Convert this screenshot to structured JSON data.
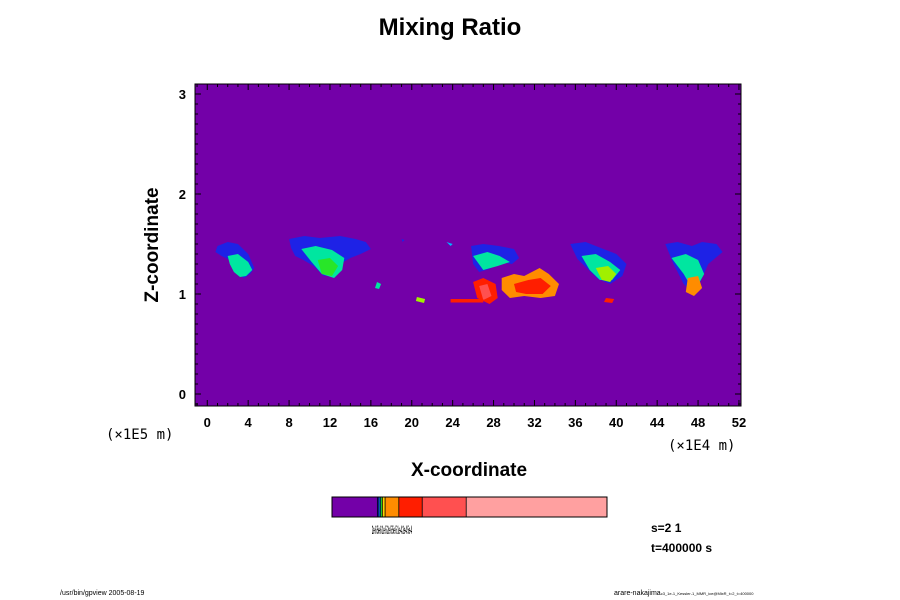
{
  "chart_data": {
    "type": "heatmap",
    "title": "Mixing Ratio",
    "xlabel": "X-coordinate",
    "ylabel": "Z-coordinate",
    "x_scale_label": "(×1E4 m)",
    "y_scale_label": "(×1E5 m)",
    "xlim": [
      -1.2,
      52.2
    ],
    "ylim": [
      -0.12,
      3.1
    ],
    "x_ticks": [
      "0",
      "4",
      "8",
      "12",
      "16",
      "20",
      "24",
      "28",
      "32",
      "36",
      "40",
      "44",
      "48",
      "52"
    ],
    "y_ticks": [
      "0",
      "1",
      "2",
      "3"
    ],
    "x_tick_values": [
      0,
      4,
      8,
      12,
      16,
      20,
      24,
      28,
      32,
      36,
      40,
      44,
      48,
      52
    ],
    "y_tick_values": [
      0,
      1,
      2,
      3
    ],
    "colorbar_labels": "2e-6 5e-6 1e-5 2e-5 5e-5 1e-4 2e-4 5e-4",
    "colors": {
      "background": "#7300a8",
      "levels": [
        "#7300a8",
        "#1e22e6",
        "#00b4ff",
        "#00e6a0",
        "#28e628",
        "#a0f000",
        "#ffd200",
        "#ff8c00",
        "#ff1e00",
        "#ff5050",
        "#ffa0a0"
      ]
    },
    "clouds": [
      {
        "x": [
          1.0,
          2.0,
          3.0,
          4.0,
          4.6,
          4.2,
          3.6,
          3.0,
          2.6,
          2.0,
          1.4,
          0.8
        ],
        "z": [
          1.48,
          1.52,
          1.5,
          1.4,
          1.26,
          1.2,
          1.16,
          1.2,
          1.3,
          1.35,
          1.38,
          1.42
        ],
        "level": 1
      },
      {
        "x": [
          2.0,
          3.0,
          4.0,
          4.4,
          3.8,
          3.2,
          2.6,
          2.2
        ],
        "z": [
          1.38,
          1.4,
          1.32,
          1.24,
          1.18,
          1.17,
          1.22,
          1.3
        ],
        "level": 3
      },
      {
        "x": [
          8.0,
          9.5,
          11.0,
          13.0,
          14.5,
          15.5,
          16.0,
          15.0,
          14.0,
          13.0,
          12.4,
          11.4,
          10.4,
          9.4,
          8.6,
          8.2
        ],
        "z": [
          1.55,
          1.58,
          1.56,
          1.58,
          1.55,
          1.52,
          1.45,
          1.4,
          1.36,
          1.3,
          1.2,
          1.18,
          1.28,
          1.34,
          1.38,
          1.46
        ],
        "level": 1
      },
      {
        "x": [
          9.2,
          10.6,
          12.2,
          13.4,
          13.2,
          12.4,
          11.2,
          10.2
        ],
        "z": [
          1.45,
          1.48,
          1.44,
          1.36,
          1.24,
          1.16,
          1.2,
          1.32
        ],
        "level": 3
      },
      {
        "x": [
          10.8,
          12.0,
          12.8,
          12.2,
          11.2
        ],
        "z": [
          1.34,
          1.36,
          1.28,
          1.18,
          1.2
        ],
        "level": 4
      },
      {
        "x": [
          25.8,
          27.0,
          28.5,
          30.0,
          30.5,
          29.8,
          28.6,
          27.6,
          26.6,
          26.0
        ],
        "z": [
          1.48,
          1.5,
          1.48,
          1.45,
          1.36,
          1.3,
          1.32,
          1.25,
          1.22,
          1.3
        ],
        "level": 1
      },
      {
        "x": [
          26.0,
          27.4,
          28.6,
          29.6,
          28.4,
          27.0
        ],
        "z": [
          1.38,
          1.42,
          1.38,
          1.32,
          1.28,
          1.24
        ],
        "level": 3
      },
      {
        "x": [
          35.5,
          37.0,
          38.5,
          40.0,
          41.0,
          40.6,
          39.4,
          38.2,
          37.2,
          36.2
        ],
        "z": [
          1.5,
          1.52,
          1.46,
          1.4,
          1.3,
          1.18,
          1.1,
          1.15,
          1.25,
          1.35
        ],
        "level": 1
      },
      {
        "x": [
          36.6,
          38.0,
          39.4,
          40.4,
          39.6,
          38.4,
          37.4
        ],
        "z": [
          1.38,
          1.4,
          1.32,
          1.24,
          1.14,
          1.14,
          1.24
        ],
        "level": 3
      },
      {
        "x": [
          38.0,
          39.2,
          40.0,
          39.4,
          38.6
        ],
        "z": [
          1.26,
          1.28,
          1.2,
          1.12,
          1.14
        ],
        "level": 5
      },
      {
        "x": [
          44.8,
          46.0,
          47.4,
          48.4,
          49.8,
          50.4,
          49.0,
          48.2,
          47.6,
          46.6,
          45.6
        ],
        "z": [
          1.5,
          1.52,
          1.48,
          1.52,
          1.5,
          1.42,
          1.3,
          1.12,
          1.0,
          1.1,
          1.3
        ],
        "level": 1
      },
      {
        "x": [
          45.4,
          46.8,
          48.0,
          48.6,
          47.6,
          46.6
        ],
        "z": [
          1.36,
          1.4,
          1.34,
          1.2,
          1.02,
          1.2
        ],
        "level": 3
      },
      {
        "x": [
          47.0,
          48.0,
          48.4,
          47.6,
          46.8
        ],
        "z": [
          1.16,
          1.18,
          1.06,
          0.98,
          1.02
        ],
        "level": 7
      },
      {
        "x": [
          26.0,
          27.0,
          28.2,
          28.4,
          27.6,
          26.4
        ],
        "z": [
          1.12,
          1.16,
          1.1,
          0.96,
          0.9,
          0.96
        ],
        "level": 8
      },
      {
        "x": [
          26.6,
          27.4,
          27.8,
          27.0
        ],
        "z": [
          1.08,
          1.1,
          0.98,
          0.94
        ],
        "level": 9
      },
      {
        "x": [
          28.8,
          30.0,
          31.0,
          32.5,
          33.4,
          34.4,
          34.0,
          32.6,
          31.0,
          29.6,
          28.8
        ],
        "z": [
          1.16,
          1.2,
          1.18,
          1.26,
          1.2,
          1.1,
          0.98,
          0.96,
          0.98,
          0.96,
          1.04
        ],
        "level": 7
      },
      {
        "x": [
          30.0,
          31.4,
          32.6,
          33.6,
          32.8,
          31.2,
          30.2
        ],
        "z": [
          1.1,
          1.14,
          1.16,
          1.08,
          1.0,
          1.0,
          1.02
        ],
        "level": 8
      },
      {
        "x": [
          23.8,
          27.0,
          27.0,
          23.8
        ],
        "z": [
          0.95,
          0.95,
          0.915,
          0.915
        ],
        "level": 8
      },
      {
        "x": [
          39.0,
          39.8,
          39.6,
          38.8
        ],
        "z": [
          0.96,
          0.95,
          0.91,
          0.92
        ],
        "level": 8
      },
      {
        "x": [
          16.6,
          17.0,
          16.8,
          16.4
        ],
        "z": [
          1.12,
          1.1,
          1.05,
          1.06
        ],
        "level": 3
      },
      {
        "x": [
          20.5,
          21.3,
          21.2,
          20.4
        ],
        "z": [
          0.97,
          0.95,
          0.91,
          0.93
        ],
        "level": 5
      },
      {
        "x": [
          23.4,
          24.0,
          23.8
        ],
        "z": [
          1.52,
          1.5,
          1.48
        ],
        "level": 2
      },
      {
        "x": [
          19.0,
          19.3,
          19.1
        ],
        "z": [
          1.55,
          1.54,
          1.52
        ],
        "level": 1
      }
    ]
  },
  "colorbar": {
    "box_colors": [
      "#7300a8",
      "#1e22e6",
      "#00b4ff",
      "#28e628",
      "#ffd200",
      "#ff8c00",
      "#ff1e00",
      "#ff5050",
      "#ffa0a0"
    ],
    "box_fractions": [
      0.165,
      0.006,
      0.006,
      0.006,
      0.01,
      0.05,
      0.085,
      0.16,
      0.512
    ]
  },
  "info": {
    "s_label": "s=2 1",
    "t_label": "t=400000 s"
  },
  "footer": {
    "left": "/usr/bin/gpview 2005-08-19",
    "right": "arare-nakajima",
    "right_small": "c3_1e-1_Kessler-1_MMR_ice@MixR_t=2_t=400000"
  }
}
